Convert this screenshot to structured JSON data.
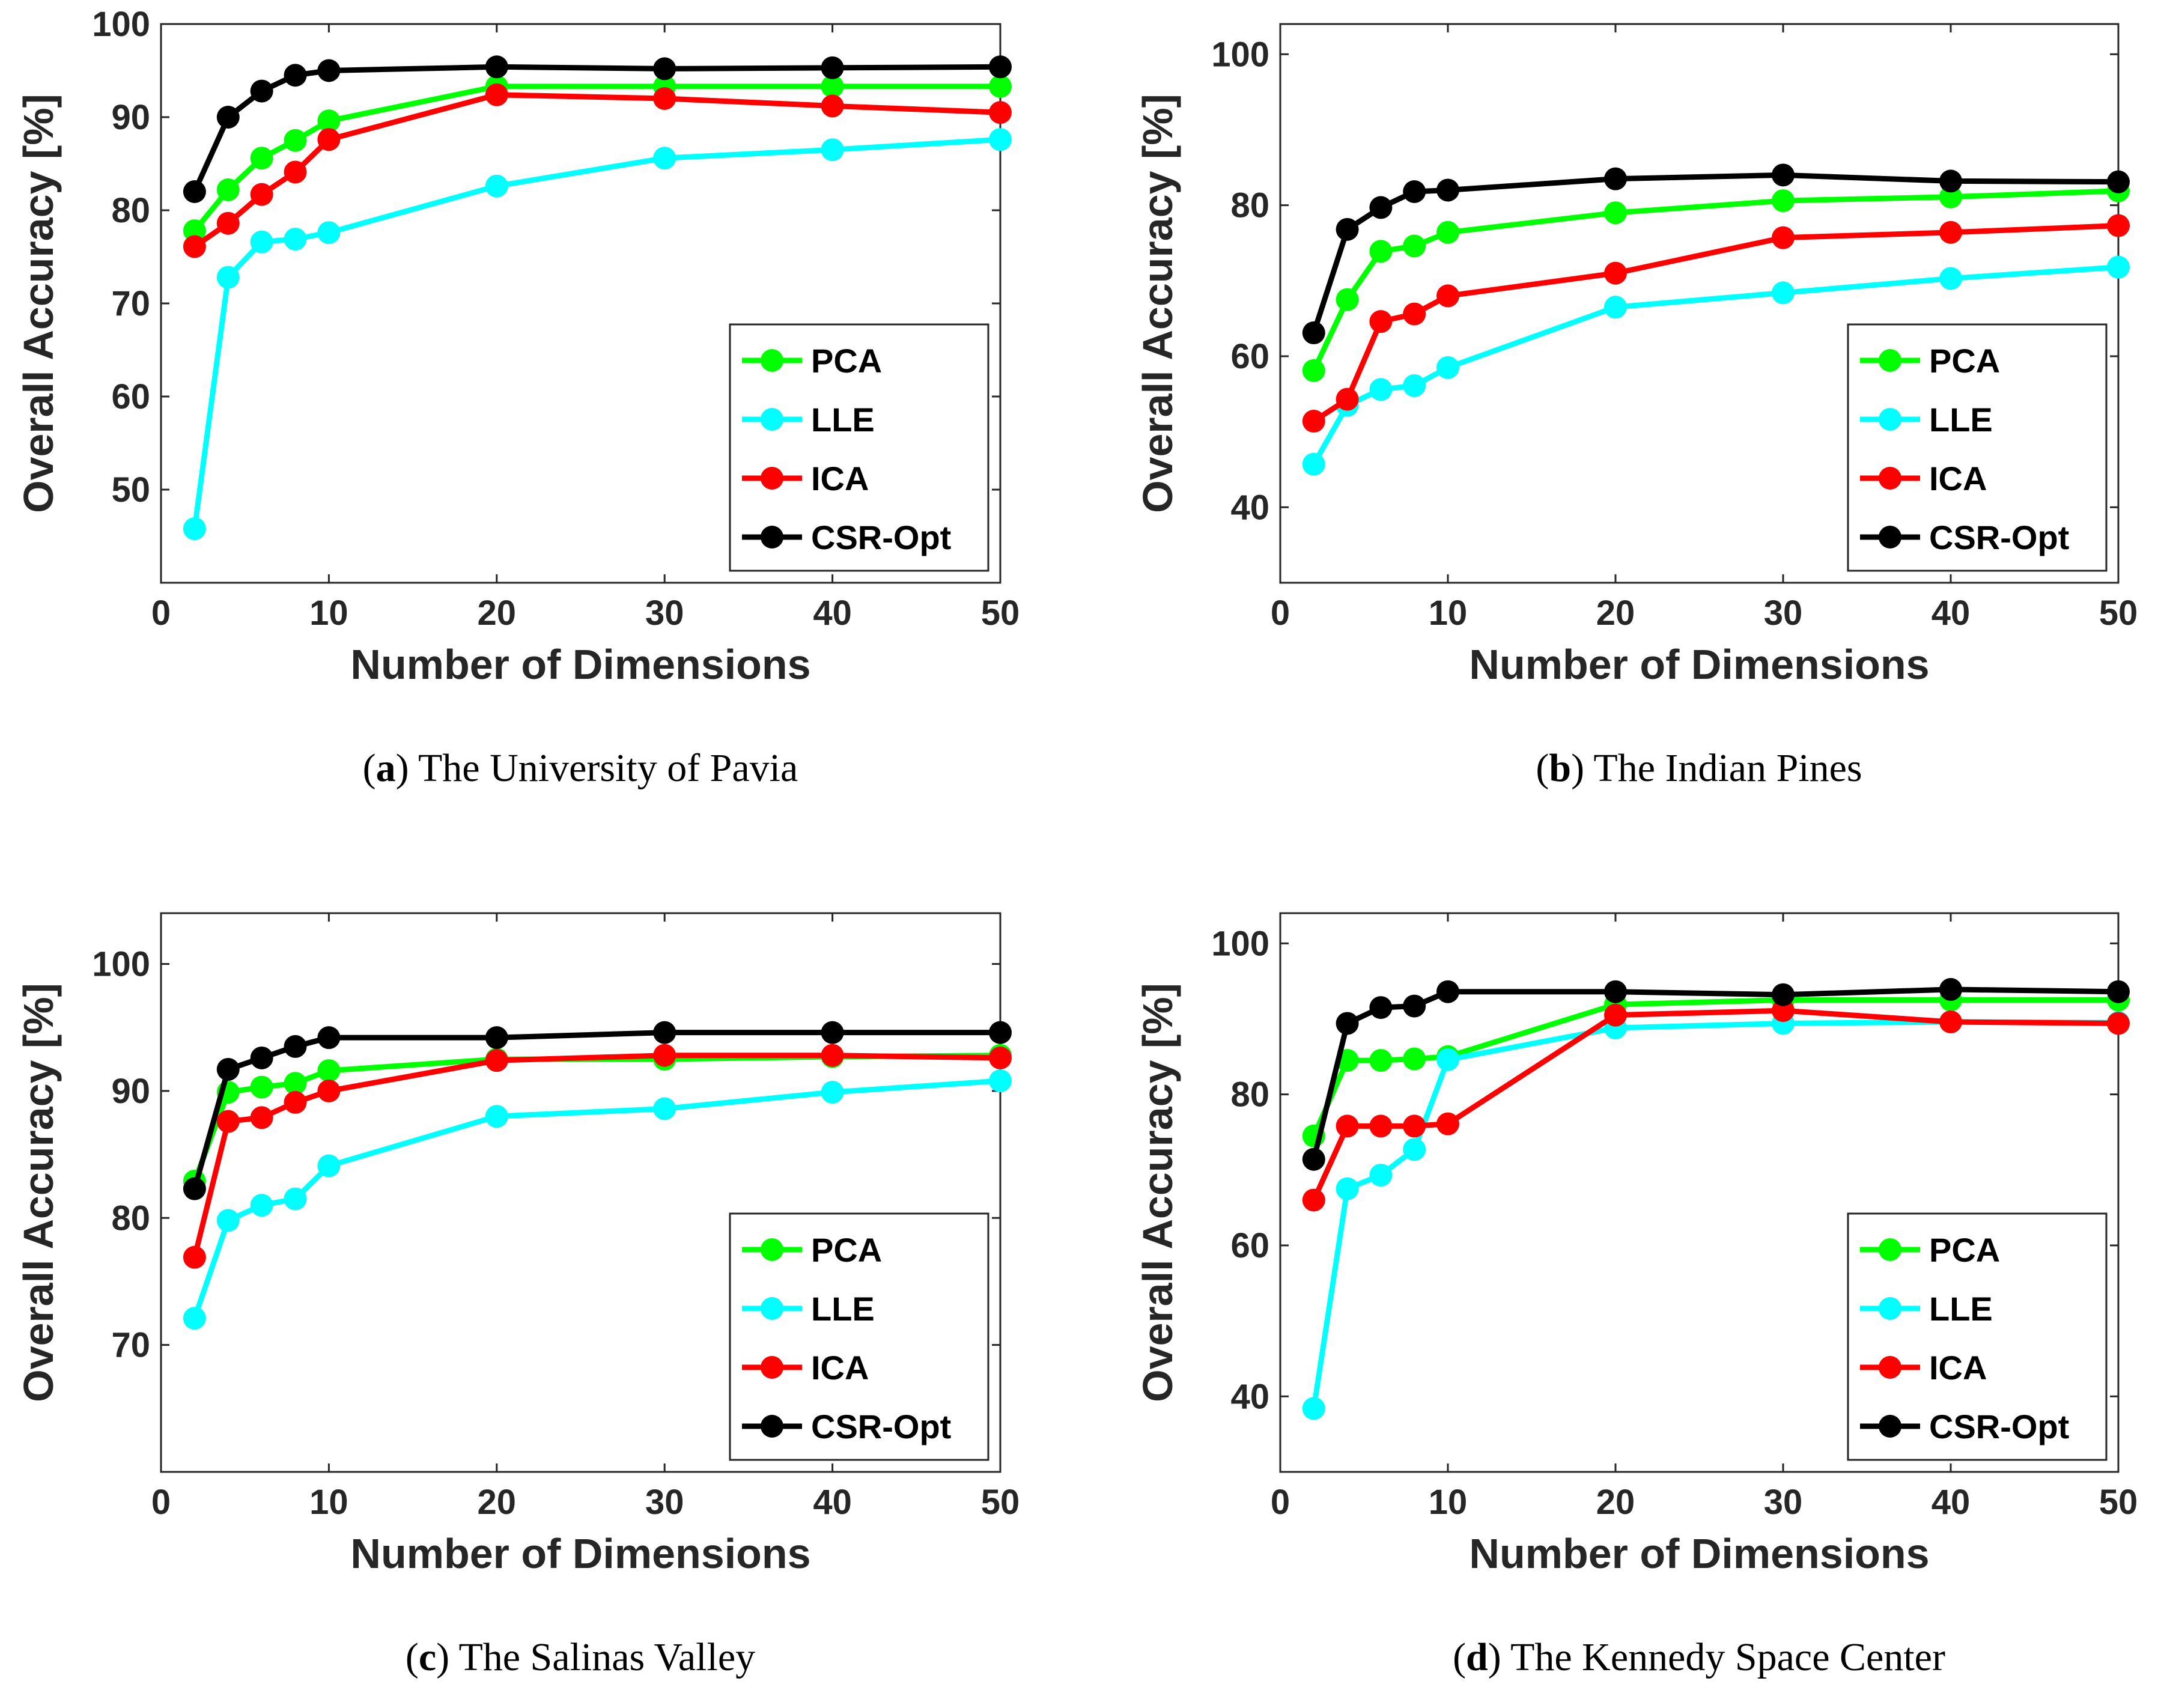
{
  "figure": {
    "x_axis_label": "Number of Dimensions",
    "y_axis_label": "Overall Accuracy [%]"
  },
  "legend": {
    "entries": [
      "PCA",
      "LLE",
      "ICA",
      "CSR-Opt"
    ]
  },
  "colors": {
    "PCA": "#00ff00",
    "LLE": "#00ffff",
    "ICA": "#ff0000",
    "CSR-Opt": "#000000"
  },
  "chart_data": [
    {
      "type": "line",
      "id": "a",
      "caption_letter": "a",
      "caption_text": "The University of Pavia",
      "xlabel": "Number of Dimensions",
      "ylabel": "Overall Accuracy [%]",
      "xlim": [
        0,
        50
      ],
      "ylim": [
        40,
        100
      ],
      "xticks": [
        0,
        10,
        20,
        30,
        40,
        50
      ],
      "yticks": [
        50,
        60,
        70,
        80,
        90,
        100
      ],
      "legend_position": "lower-right",
      "x": [
        2,
        4,
        6,
        8,
        10,
        20,
        30,
        40,
        50
      ],
      "series": [
        {
          "name": "PCA",
          "values": [
            77.8,
            82.2,
            85.6,
            87.5,
            89.6,
            93.3,
            93.3,
            93.3,
            93.3
          ]
        },
        {
          "name": "LLE",
          "values": [
            45.8,
            72.8,
            76.6,
            76.9,
            77.6,
            82.6,
            85.6,
            86.5,
            87.6
          ]
        },
        {
          "name": "ICA",
          "values": [
            76.1,
            78.6,
            81.7,
            84.1,
            87.6,
            92.4,
            92.0,
            91.2,
            90.5
          ]
        },
        {
          "name": "CSR-Opt",
          "values": [
            82.0,
            90.0,
            92.8,
            94.5,
            95.0,
            95.4,
            95.2,
            95.3,
            95.4
          ]
        }
      ]
    },
    {
      "type": "line",
      "id": "b",
      "caption_letter": "b",
      "caption_text": "The Indian Pines",
      "xlabel": "Number of Dimensions",
      "ylabel": "Overall Accuracy [%]",
      "xlim": [
        0,
        50
      ],
      "ylim": [
        30,
        104
      ],
      "xticks": [
        0,
        10,
        20,
        30,
        40,
        50
      ],
      "yticks": [
        40,
        60,
        80,
        100
      ],
      "legend_position": "lower-right",
      "x": [
        2,
        4,
        6,
        8,
        10,
        20,
        30,
        40,
        50
      ],
      "series": [
        {
          "name": "PCA",
          "values": [
            58.1,
            67.5,
            73.9,
            74.6,
            76.4,
            79.0,
            80.6,
            81.1,
            81.9
          ]
        },
        {
          "name": "LLE",
          "values": [
            45.7,
            53.5,
            55.6,
            56.1,
            58.5,
            66.5,
            68.4,
            70.3,
            71.8
          ]
        },
        {
          "name": "ICA",
          "values": [
            51.4,
            54.3,
            64.6,
            65.6,
            68.0,
            71.0,
            75.7,
            76.4,
            77.3
          ]
        },
        {
          "name": "CSR-Opt",
          "values": [
            63.1,
            76.8,
            79.7,
            81.8,
            82.0,
            83.5,
            84.0,
            83.2,
            83.1
          ]
        }
      ]
    },
    {
      "type": "line",
      "id": "c",
      "caption_letter": "c",
      "caption_text": "The Salinas Valley",
      "xlabel": "Number of Dimensions",
      "ylabel": "Overall Accuracy [%]",
      "xlim": [
        0,
        50
      ],
      "ylim": [
        60,
        104
      ],
      "xticks": [
        0,
        10,
        20,
        30,
        40,
        50
      ],
      "yticks": [
        70,
        80,
        90,
        100
      ],
      "legend_position": "lower-right",
      "x": [
        2,
        4,
        6,
        8,
        10,
        20,
        30,
        40,
        50
      ],
      "series": [
        {
          "name": "PCA",
          "values": [
            82.9,
            89.9,
            90.3,
            90.6,
            91.6,
            92.5,
            92.5,
            92.7,
            92.8
          ]
        },
        {
          "name": "LLE",
          "values": [
            72.1,
            79.8,
            81.0,
            81.5,
            84.1,
            88.0,
            88.6,
            89.9,
            90.8
          ]
        },
        {
          "name": "ICA",
          "values": [
            76.9,
            87.6,
            87.9,
            89.1,
            90.0,
            92.4,
            92.8,
            92.8,
            92.6
          ]
        },
        {
          "name": "CSR-Opt",
          "values": [
            82.3,
            91.7,
            92.6,
            93.5,
            94.2,
            94.2,
            94.6,
            94.6,
            94.6
          ]
        }
      ]
    },
    {
      "type": "line",
      "id": "d",
      "caption_letter": "d",
      "caption_text": "The Kennedy Space Center",
      "xlabel": "Number of Dimensions",
      "ylabel": "Overall Accuracy [%]",
      "xlim": [
        0,
        50
      ],
      "ylim": [
        30,
        104
      ],
      "xticks": [
        0,
        10,
        20,
        30,
        40,
        50
      ],
      "yticks": [
        40,
        60,
        80,
        100
      ],
      "legend_position": "lower-right",
      "x": [
        2,
        4,
        6,
        8,
        10,
        20,
        30,
        40,
        50
      ],
      "series": [
        {
          "name": "PCA",
          "values": [
            74.5,
            84.5,
            84.5,
            84.7,
            85.0,
            91.9,
            92.5,
            92.5,
            92.5
          ]
        },
        {
          "name": "LLE",
          "values": [
            38.4,
            67.5,
            69.3,
            72.7,
            84.6,
            88.8,
            89.4,
            89.6,
            89.5
          ]
        },
        {
          "name": "ICA",
          "values": [
            66.0,
            75.8,
            75.8,
            75.8,
            76.1,
            90.5,
            91.1,
            89.6,
            89.4
          ]
        },
        {
          "name": "CSR-Opt",
          "values": [
            71.4,
            89.4,
            91.5,
            91.7,
            93.6,
            93.6,
            93.2,
            93.9,
            93.6
          ]
        }
      ]
    }
  ]
}
